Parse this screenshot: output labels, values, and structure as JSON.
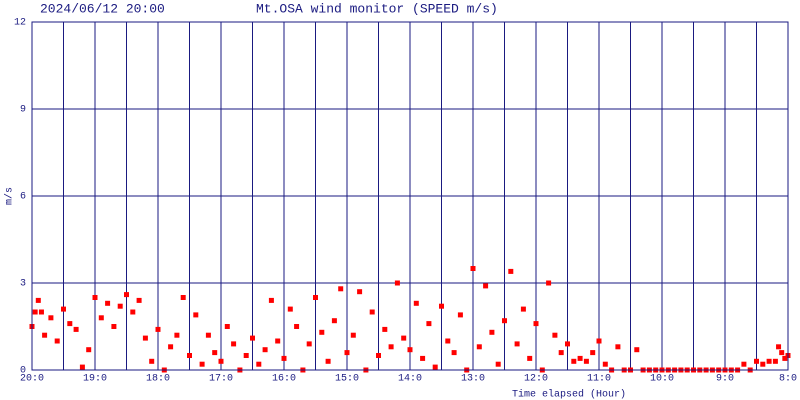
{
  "chart_data": {
    "type": "scatter",
    "timestamp": "2024/06/12 20:00",
    "title": "Mt.OSA wind monitor (SPEED m/s)",
    "x_label": "Time elapsed (Hour)",
    "y_label": "m/s",
    "color": "#ff0000",
    "grid_color": "#1a1a80",
    "grid": true,
    "xlim": [
      0,
      12
    ],
    "ylim": [
      0,
      12
    ],
    "yticks": [
      0,
      3,
      6,
      9,
      12
    ],
    "xticks": [
      {
        "value": 0,
        "label": "20:0"
      },
      {
        "value": 1,
        "label": "19:0"
      },
      {
        "value": 2,
        "label": "18:0"
      },
      {
        "value": 3,
        "label": "17:0"
      },
      {
        "value": 4,
        "label": "16:0"
      },
      {
        "value": 5,
        "label": "15:0"
      },
      {
        "value": 6,
        "label": "14:0"
      },
      {
        "value": 7,
        "label": "13:0"
      },
      {
        "value": 8,
        "label": "12:0"
      },
      {
        "value": 9,
        "label": "11:0"
      },
      {
        "value": 10,
        "label": "10:0"
      },
      {
        "value": 11,
        "label": "9:0"
      },
      {
        "value": 12,
        "label": "8:0"
      }
    ],
    "xminor_ticks": [
      0.5,
      1.5,
      2.5,
      3.5,
      4.5,
      5.5,
      6.5,
      7.5,
      8.5,
      9.5,
      10.5,
      11.5
    ],
    "x": [
      0,
      0.05,
      0.1,
      0.15,
      0.2,
      0.3,
      0.4,
      0.5,
      0.6,
      0.7,
      0.8,
      0.9,
      1.0,
      1.1,
      1.2,
      1.3,
      1.4,
      1.5,
      1.6,
      1.7,
      1.8,
      1.9,
      2.0,
      2.1,
      2.2,
      2.3,
      2.4,
      2.5,
      2.6,
      2.7,
      2.8,
      2.9,
      3.0,
      3.1,
      3.2,
      3.3,
      3.4,
      3.5,
      3.6,
      3.7,
      3.8,
      3.9,
      4.0,
      4.1,
      4.2,
      4.3,
      4.4,
      4.5,
      4.6,
      4.7,
      4.8,
      4.9,
      5.0,
      5.1,
      5.2,
      5.3,
      5.4,
      5.5,
      5.6,
      5.7,
      5.8,
      5.9,
      6.0,
      6.1,
      6.2,
      6.3,
      6.4,
      6.5,
      6.6,
      6.7,
      6.8,
      6.9,
      7.0,
      7.1,
      7.2,
      7.3,
      7.4,
      7.5,
      7.6,
      7.7,
      7.8,
      7.9,
      8.0,
      8.1,
      8.2,
      8.3,
      8.4,
      8.5,
      8.6,
      8.7,
      8.8,
      8.9,
      9.0,
      9.1,
      9.2,
      9.3,
      9.4,
      9.5,
      9.6,
      9.7,
      9.8,
      9.9,
      10.0,
      10.1,
      10.2,
      10.3,
      10.4,
      10.5,
      10.6,
      10.7,
      10.8,
      10.9,
      11.0,
      11.1,
      11.2,
      11.3,
      11.4,
      11.5,
      11.6,
      11.7,
      11.8,
      11.85,
      11.9,
      11.95,
      12.0
    ],
    "values": [
      1.5,
      2.0,
      2.4,
      2.0,
      1.2,
      1.8,
      1.0,
      2.1,
      1.6,
      1.4,
      0.1,
      0.7,
      2.5,
      1.8,
      2.3,
      1.5,
      2.2,
      2.6,
      2.0,
      2.4,
      1.1,
      0.3,
      1.4,
      0.0,
      0.8,
      1.2,
      2.5,
      0.5,
      1.9,
      0.2,
      1.2,
      0.6,
      0.3,
      1.5,
      0.9,
      0.0,
      0.5,
      1.1,
      0.2,
      0.7,
      2.4,
      1.0,
      0.4,
      2.1,
      1.5,
      0.0,
      0.9,
      2.5,
      1.3,
      0.3,
      1.7,
      2.8,
      0.6,
      1.2,
      2.7,
      0.0,
      2.0,
      0.5,
      1.4,
      0.8,
      3.0,
      1.1,
      0.7,
      2.3,
      0.4,
      1.6,
      0.1,
      2.2,
      1.0,
      0.6,
      1.9,
      0.0,
      3.5,
      0.8,
      2.9,
      1.3,
      0.2,
      1.7,
      3.4,
      0.9,
      2.1,
      0.4,
      1.6,
      0.0,
      3.0,
      1.2,
      0.6,
      0.9,
      0.3,
      0.4,
      0.3,
      0.6,
      1.0,
      0.2,
      0.0,
      0.8,
      0.0,
      0.0,
      0.7,
      0.0,
      0.0,
      0.0,
      0.0,
      0.0,
      0.0,
      0.0,
      0.0,
      0.0,
      0.0,
      0.0,
      0.0,
      0.0,
      0.0,
      0.0,
      0.0,
      0.2,
      0.0,
      0.3,
      0.2,
      0.3,
      0.3,
      0.8,
      0.6,
      0.4,
      0.5
    ]
  }
}
